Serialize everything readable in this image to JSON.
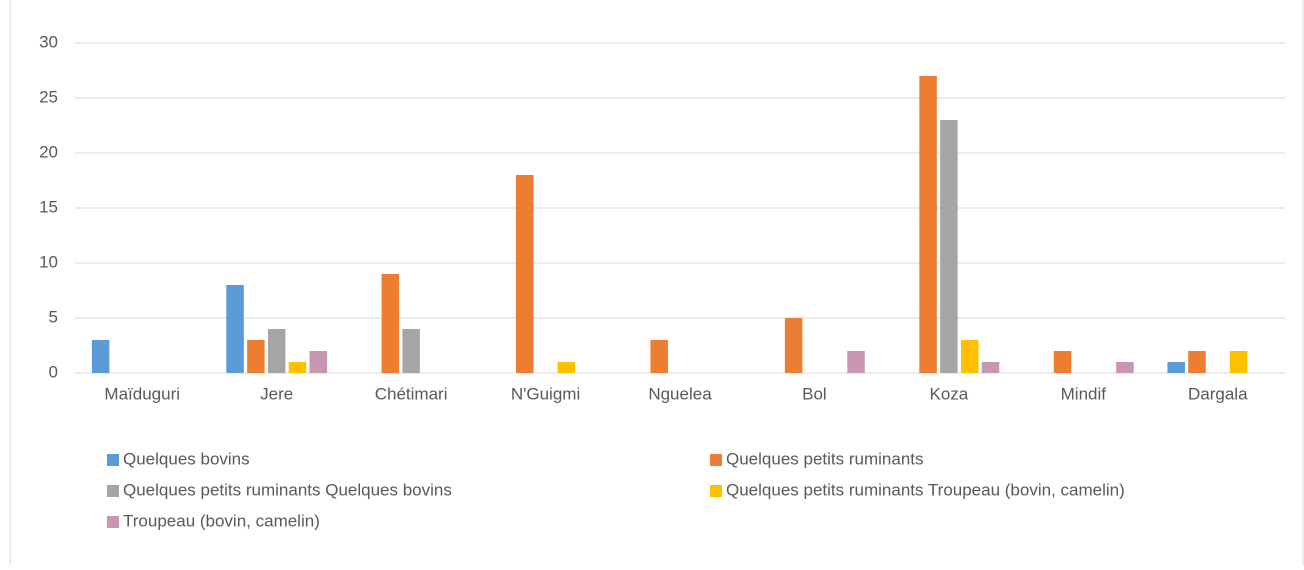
{
  "chart_data": {
    "type": "bar",
    "categories": [
      "Maïduguri",
      "Jere",
      "Chétimari",
      "N'Guigmi",
      "Nguelea",
      "Bol",
      "Koza",
      "Mindif",
      "Dargala"
    ],
    "series": [
      {
        "name": "Quelques bovins",
        "color": "#5b9bd5",
        "values": [
          3,
          8,
          0,
          0,
          0,
          0,
          0,
          0,
          1
        ]
      },
      {
        "name": "Quelques petits ruminants",
        "color": "#ed7d31",
        "values": [
          0,
          3,
          9,
          18,
          3,
          5,
          27,
          2,
          2
        ]
      },
      {
        "name": "Quelques petits ruminants Quelques bovins",
        "color": "#a5a5a5",
        "values": [
          0,
          4,
          4,
          0,
          0,
          0,
          23,
          0,
          0
        ]
      },
      {
        "name": "Quelques petits ruminants Troupeau (bovin, camelin)",
        "color": "#ffc000",
        "values": [
          0,
          1,
          0,
          1,
          0,
          0,
          3,
          0,
          2
        ]
      },
      {
        "name": "Troupeau (bovin, camelin)",
        "color": "#c896b0",
        "values": [
          0,
          2,
          0,
          0,
          0,
          2,
          1,
          1,
          0
        ]
      }
    ],
    "ylim": [
      0,
      30
    ],
    "yticks": [
      0,
      5,
      10,
      15,
      20,
      25,
      30
    ],
    "grid": true,
    "legend": "bottom"
  }
}
